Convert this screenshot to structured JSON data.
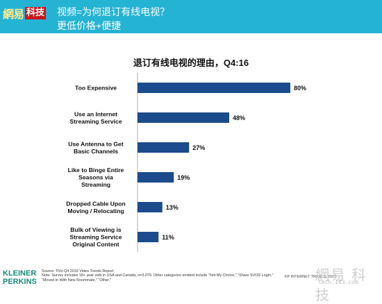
{
  "header": {
    "logo_main": "網易",
    "logo_box": "科技",
    "title_line1": "视频=为何退订有线电视？",
    "title_line2": "更低价格+便捷"
  },
  "colors": {
    "header_bg": "#25b3d4",
    "bar": "#1b4b8c"
  },
  "chart_data": {
    "type": "bar",
    "orientation": "horizontal",
    "title": "退订有线电视的理由，Q4:16",
    "categories": [
      [
        "Too Expensive"
      ],
      [
        "Use an Internet",
        "Streaming Service"
      ],
      [
        "Use Antenna to Get",
        "Basic Channels"
      ],
      [
        "Like to Binge Entire",
        "Seasons via",
        "Streaming"
      ],
      [
        "Dropped Cable Upon",
        "Moving / Relocating"
      ],
      [
        "Bulk of Viewing is",
        "Streaming Service",
        "Original Content"
      ]
    ],
    "values": [
      80,
      48,
      27,
      19,
      13,
      11
    ],
    "value_labels": [
      "80%",
      "48%",
      "27%",
      "19%",
      "13%",
      "11%"
    ],
    "xlim": [
      0,
      100
    ]
  },
  "footer": {
    "logo_line1": "KLEINER",
    "logo_line2": "PERKINS",
    "source_line1": "Source: TiVo Q4 2016 Video Trends Report",
    "source_line2": "Note: Survey includes 18+ year olds in USA and Canada, n=3,079. Other categories omitted include \"Not My Choice,\" \"Share SVOD Login,\"",
    "source_line3": "\"Moved In With New Roommate,\" \"Other.\"",
    "kp_text": "KP INTERNET TRENDS 2017",
    "watermark_text": "網易 科技",
    "watermark_url": "tech.163.com"
  }
}
